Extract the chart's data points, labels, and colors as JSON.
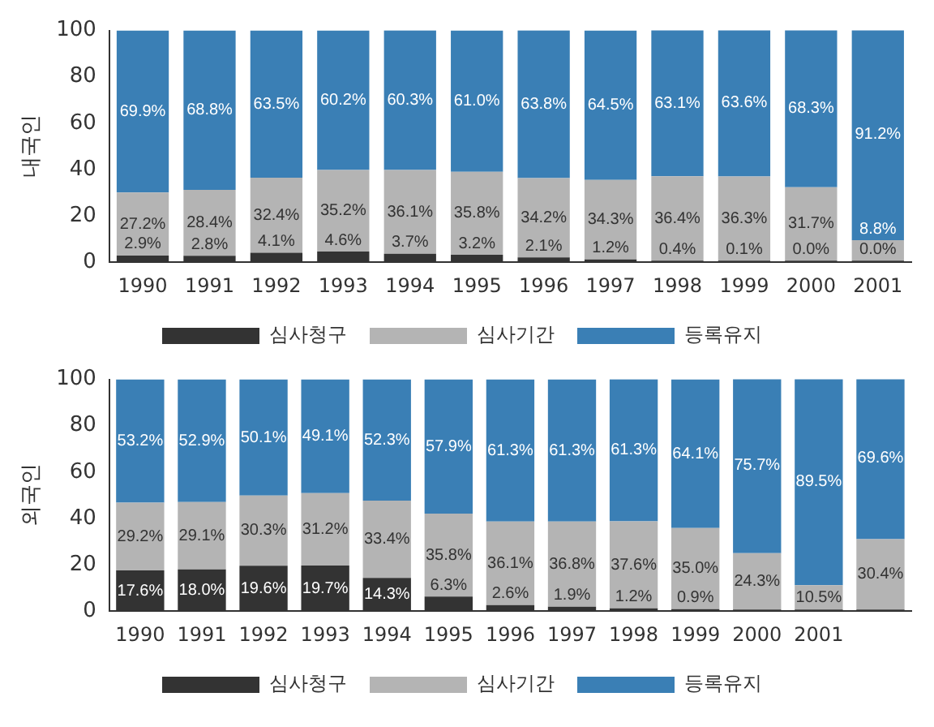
{
  "chart_data": [
    {
      "type": "bar",
      "stacked": true,
      "ylabel": "내국인",
      "categories": [
        "1990",
        "1991",
        "1992",
        "1993",
        "1994",
        "1995",
        "1996",
        "1997",
        "1998",
        "1999",
        "2000",
        "2001"
      ],
      "ylim": [
        0,
        100
      ],
      "yticks": [
        0,
        20,
        40,
        60,
        80,
        100
      ],
      "legend": "bottom",
      "grid": false,
      "series": [
        {
          "name": "심사청구",
          "color": "#333333",
          "values": [
            2.9,
            2.8,
            4.1,
            4.6,
            3.7,
            3.2,
            2.1,
            1.2,
            0.4,
            0.1,
            0.0,
            0.0
          ],
          "value_labels": [
            "2.9%",
            "2.8%",
            "4.1%",
            "4.6%",
            "3.7%",
            "3.2%",
            "2.1%",
            "1.2%",
            "0.4%",
            "0.1%",
            "0.0%",
            "0.0%"
          ]
        },
        {
          "name": "심사기간",
          "color": "#b4b4b4",
          "values": [
            27.2,
            28.4,
            32.4,
            35.2,
            36.1,
            35.8,
            34.2,
            34.3,
            36.4,
            36.3,
            31.7,
            8.8
          ],
          "value_labels": [
            "27.2%",
            "28.4%",
            "32.4%",
            "35.2%",
            "36.1%",
            "35.8%",
            "34.2%",
            "34.3%",
            "36.4%",
            "36.3%",
            "31.7%",
            "8.8%"
          ]
        },
        {
          "name": "등록유지",
          "color": "#3a7fb5",
          "values": [
            69.9,
            68.8,
            63.5,
            60.2,
            60.3,
            61.0,
            63.8,
            64.5,
            63.1,
            63.6,
            68.3,
            91.2
          ],
          "value_labels": [
            "69.9%",
            "68.8%",
            "63.5%",
            "60.2%",
            "60.3%",
            "61.0%",
            "63.8%",
            "64.5%",
            "63.1%",
            "63.6%",
            "68.3%",
            "91.2%"
          ]
        }
      ]
    },
    {
      "type": "bar",
      "stacked": true,
      "ylabel": "외국인",
      "categories": [
        "1990",
        "1991",
        "1992",
        "1993",
        "1994",
        "1995",
        "1996",
        "1997",
        "1998",
        "1999",
        "2000",
        "2001",
        null
      ],
      "ylim": [
        0,
        100
      ],
      "yticks": [
        0,
        20,
        40,
        60,
        80,
        100
      ],
      "legend": "bottom",
      "grid": false,
      "series": [
        {
          "name": "심사청구",
          "color": "#333333",
          "values": [
            17.6,
            18.0,
            19.6,
            19.7,
            14.3,
            6.3,
            2.6,
            1.9,
            1.2,
            0.9,
            0,
            0,
            0
          ],
          "value_labels": [
            "17.6%",
            "18.0%",
            "19.6%",
            "19.7%",
            "14.3%",
            "6.3%",
            "2.6%",
            "1.9%",
            "1.2%",
            "0.9%",
            null,
            null,
            null
          ]
        },
        {
          "name": "심사기간",
          "color": "#b4b4b4",
          "values": [
            29.2,
            29.1,
            30.3,
            31.2,
            33.4,
            35.8,
            36.1,
            36.8,
            37.6,
            35.0,
            24.3,
            10.5,
            30.4
          ],
          "value_labels": [
            "29.2%",
            "29.1%",
            "30.3%",
            "31.2%",
            "33.4%",
            "35.8%",
            "36.1%",
            "36.8%",
            "37.6%",
            "35.0%",
            "24.3%",
            "10.5%",
            "30.4%"
          ]
        },
        {
          "name": "등록유지",
          "color": "#3a7fb5",
          "values": [
            53.2,
            52.9,
            50.1,
            49.1,
            52.3,
            57.9,
            61.3,
            61.3,
            61.3,
            64.1,
            75.7,
            89.5,
            69.6
          ],
          "value_labels": [
            "53.2%",
            "52.9%",
            "50.1%",
            "49.1%",
            "52.3%",
            "57.9%",
            "61.3%",
            "61.3%",
            "61.3%",
            "64.1%",
            "75.7%",
            "89.5%",
            "69.6%"
          ]
        }
      ]
    }
  ]
}
